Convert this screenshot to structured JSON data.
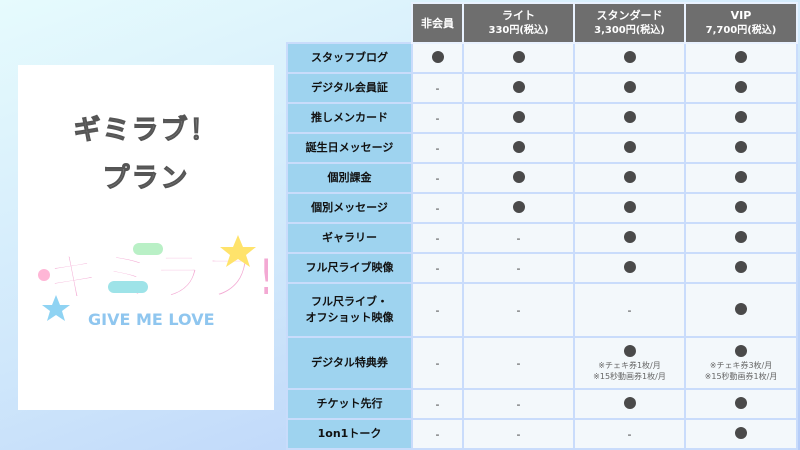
{
  "card": {
    "title_line1": "ギミラブ！",
    "title_line2": "プラン",
    "logo_text": "ギミラブ!",
    "logo_subtext": "GIVE ME LOVE"
  },
  "plans": [
    {
      "name": "非会員",
      "price": ""
    },
    {
      "name": "ライト",
      "price": "330円(税込)"
    },
    {
      "name": "スタンダード",
      "price": "3,300円(税込)"
    },
    {
      "name": "VIP",
      "price": "7,700円(税込)"
    }
  ],
  "symbols": {
    "yes": "●",
    "no": "-",
    "yes_color": "#4a4a4a",
    "label_bg": "#9ed3ef",
    "header_bg": "#6e6e6e"
  },
  "rows": [
    {
      "label": "スタッフブログ",
      "values": [
        "yes",
        "yes",
        "yes",
        "yes"
      ]
    },
    {
      "label": "デジタル会員証",
      "values": [
        "no",
        "yes",
        "yes",
        "yes"
      ]
    },
    {
      "label": "推しメンカード",
      "values": [
        "no",
        "yes",
        "yes",
        "yes"
      ]
    },
    {
      "label": "誕生日メッセージ",
      "values": [
        "no",
        "yes",
        "yes",
        "yes"
      ]
    },
    {
      "label": "個別課金",
      "values": [
        "no",
        "yes",
        "yes",
        "yes"
      ]
    },
    {
      "label": "個別メッセージ",
      "values": [
        "no",
        "yes",
        "yes",
        "yes"
      ]
    },
    {
      "label": "ギャラリー",
      "values": [
        "no",
        "no",
        "yes",
        "yes"
      ]
    },
    {
      "label": "フル尺ライブ映像",
      "values": [
        "no",
        "no",
        "yes",
        "yes"
      ]
    },
    {
      "label": "フル尺ライブ・\nオフショット映像",
      "values": [
        "no",
        "no",
        "no",
        "yes"
      ]
    },
    {
      "label": "デジタル特典券",
      "values": [
        "no",
        "no",
        "yes",
        "yes"
      ],
      "notes": [
        [],
        [],
        [
          "※チェキ券1枚/月",
          "※15秒動画券1枚/月"
        ],
        [
          "※チェキ券3枚/月",
          "※15秒動画券1枚/月"
        ]
      ]
    },
    {
      "label": "チケット先行",
      "values": [
        "no",
        "no",
        "yes",
        "yes"
      ]
    },
    {
      "label": "1on1トーク",
      "values": [
        "no",
        "no",
        "no",
        "yes"
      ]
    }
  ]
}
